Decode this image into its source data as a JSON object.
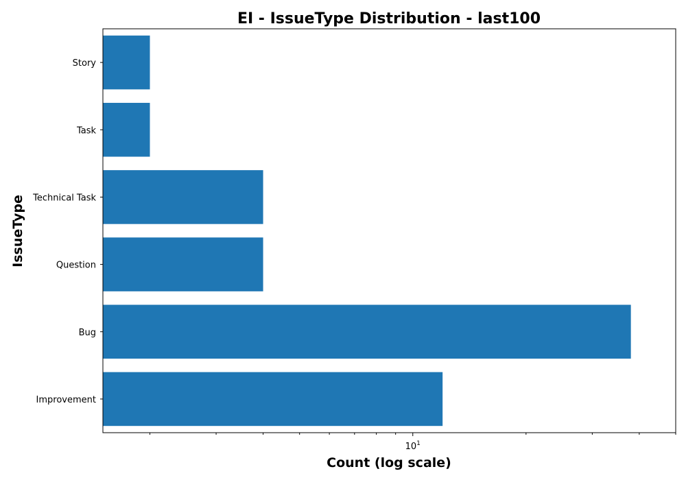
{
  "chart_data": {
    "type": "bar",
    "orientation": "horizontal",
    "title": "EI - IssueType Distribution - last100",
    "xlabel": "Count (log scale)",
    "ylabel": "IssueType",
    "xscale": "log",
    "xlim": [
      1.5,
      50
    ],
    "xtick_base": "10",
    "xtick_exp": "1",
    "categories": [
      "Story",
      "Task",
      "Technical Task",
      "Question",
      "Bug",
      "Improvement"
    ],
    "values": [
      2,
      2,
      4,
      4,
      38,
      12
    ],
    "bar_color": "#1f77b4",
    "grid": false
  }
}
